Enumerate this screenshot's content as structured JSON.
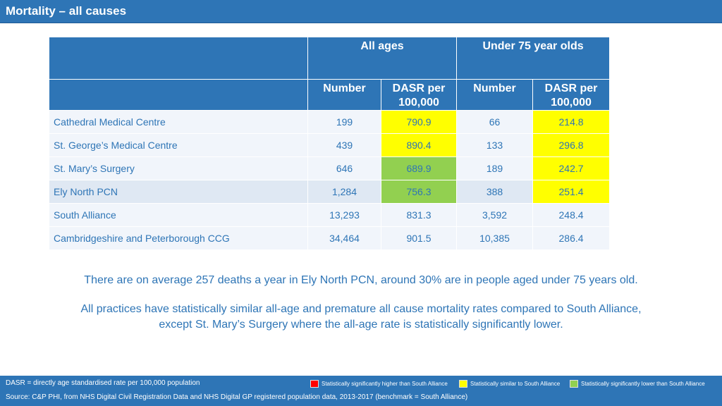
{
  "title": "Mortality – all causes",
  "table": {
    "group_headers": [
      "All ages",
      "Under 75 year olds"
    ],
    "sub_headers": [
      "Number",
      "DASR per 100,000",
      "Number",
      "DASR per 100,000"
    ],
    "rows": [
      {
        "name": "Cathedral Medical Centre",
        "values": [
          "199",
          "790.9",
          "66",
          "214.8"
        ],
        "dasr_all_status": "similar",
        "dasr_u75_status": "similar"
      },
      {
        "name": "St. George’s Medical Centre",
        "values": [
          "439",
          "890.4",
          "133",
          "296.8"
        ],
        "dasr_all_status": "similar",
        "dasr_u75_status": "similar"
      },
      {
        "name": "St. Mary’s Surgery",
        "values": [
          "646",
          "689.9",
          "189",
          "242.7"
        ],
        "dasr_all_status": "lower",
        "dasr_u75_status": "similar"
      },
      {
        "name": "Ely North PCN",
        "values": [
          "1,284",
          "756.3",
          "388",
          "251.4"
        ],
        "dasr_all_status": "lower",
        "dasr_u75_status": "similar"
      },
      {
        "name": "South Alliance",
        "values": [
          "13,293",
          "831.3",
          "3,592",
          "248.4"
        ]
      },
      {
        "name": "Cambridgeshire and Peterborough CCG",
        "values": [
          "34,464",
          "901.5",
          "10,385",
          "286.4"
        ]
      }
    ]
  },
  "summary": {
    "line1": "There are on average 257 deaths a year in Ely North PCN, around 30% are in people aged under 75 years old.",
    "line2a": "All practices have statistically similar all-age and premature all cause mortality rates compared to South Alliance,",
    "line2b": "except St. Mary’s Surgery where the all-age rate is statistically significantly lower."
  },
  "footer": {
    "note": "DASR = directly age standardised rate per 100,000 population",
    "source": "Source: C&P PHI, from NHS Digital Civil Registration Data and NHS Digital GP registered population data, 2013-2017 (benchmark = South Alliance)"
  },
  "legend": [
    {
      "label": "Statistically significantly higher than South Alliance",
      "color": "#ff0000"
    },
    {
      "label": "Statistically similar to South Alliance",
      "color": "#ffff00"
    },
    {
      "label": "Statistically significantly lower than South Alliance",
      "color": "#92d050"
    }
  ]
}
